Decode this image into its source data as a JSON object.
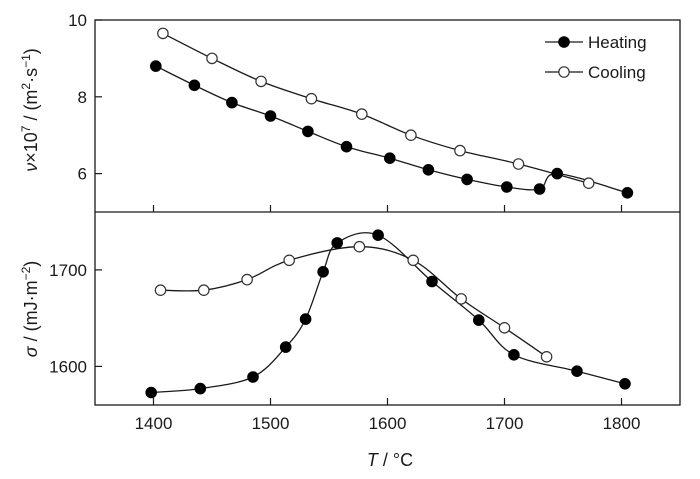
{
  "chart_data": [
    {
      "type": "scatter",
      "panel": "top",
      "ylabel_var": "ν",
      "ylabel_rest": "×10",
      "ylabel_exp": "7",
      "ylabel_unit_open": " / (m",
      "ylabel_unit_exp1": "2",
      "ylabel_unit_mid": "·s",
      "ylabel_unit_exp2": "−1",
      "ylabel_unit_close": ")",
      "ylim": [
        5.0,
        10.0
      ],
      "yticks": [
        6,
        8,
        10
      ],
      "xlim": [
        1350,
        1850
      ],
      "grid": false,
      "legend_position": "top-right",
      "series": [
        {
          "name": "Heating",
          "marker": "filled-circle",
          "x": [
            1402,
            1435,
            1467,
            1500,
            1532,
            1565,
            1602,
            1635,
            1668,
            1702,
            1730,
            1745,
            1805
          ],
          "y": [
            8.8,
            8.3,
            7.85,
            7.5,
            7.1,
            6.7,
            6.4,
            6.1,
            5.85,
            5.65,
            5.6,
            6.0,
            5.5
          ]
        },
        {
          "name": "Cooling",
          "marker": "open-circle",
          "x": [
            1408,
            1450,
            1492,
            1535,
            1578,
            1620,
            1662,
            1712,
            1772
          ],
          "y": [
            9.65,
            9.0,
            8.4,
            7.95,
            7.55,
            7.0,
            6.6,
            6.25,
            5.75
          ]
        }
      ]
    },
    {
      "type": "scatter",
      "panel": "bottom",
      "ylabel_var": "σ",
      "ylabel_unit_open": " / (mJ·m",
      "ylabel_unit_exp": "−2",
      "ylabel_unit_close": ")",
      "xlabel_var": "T",
      "xlabel_unit": " / °C",
      "ylim": [
        1560,
        1760
      ],
      "yticks": [
        1600,
        1700
      ],
      "xlim": [
        1350,
        1850
      ],
      "xticks": [
        1400,
        1500,
        1600,
        1700,
        1800
      ],
      "grid": false,
      "series": [
        {
          "name": "Heating",
          "marker": "filled-circle",
          "x": [
            1398,
            1440,
            1485,
            1513,
            1530,
            1545,
            1557,
            1592,
            1638,
            1678,
            1708,
            1762,
            1803
          ],
          "y": [
            1573,
            1577,
            1589,
            1620,
            1649,
            1698,
            1728,
            1736,
            1688,
            1648,
            1612,
            1595,
            1582
          ]
        },
        {
          "name": "Cooling",
          "marker": "open-circle",
          "x": [
            1406,
            1443,
            1480,
            1516,
            1576,
            1622,
            1663,
            1700,
            1736
          ],
          "y": [
            1679,
            1679,
            1690,
            1710,
            1724,
            1710,
            1670,
            1640,
            1610
          ]
        }
      ]
    }
  ]
}
